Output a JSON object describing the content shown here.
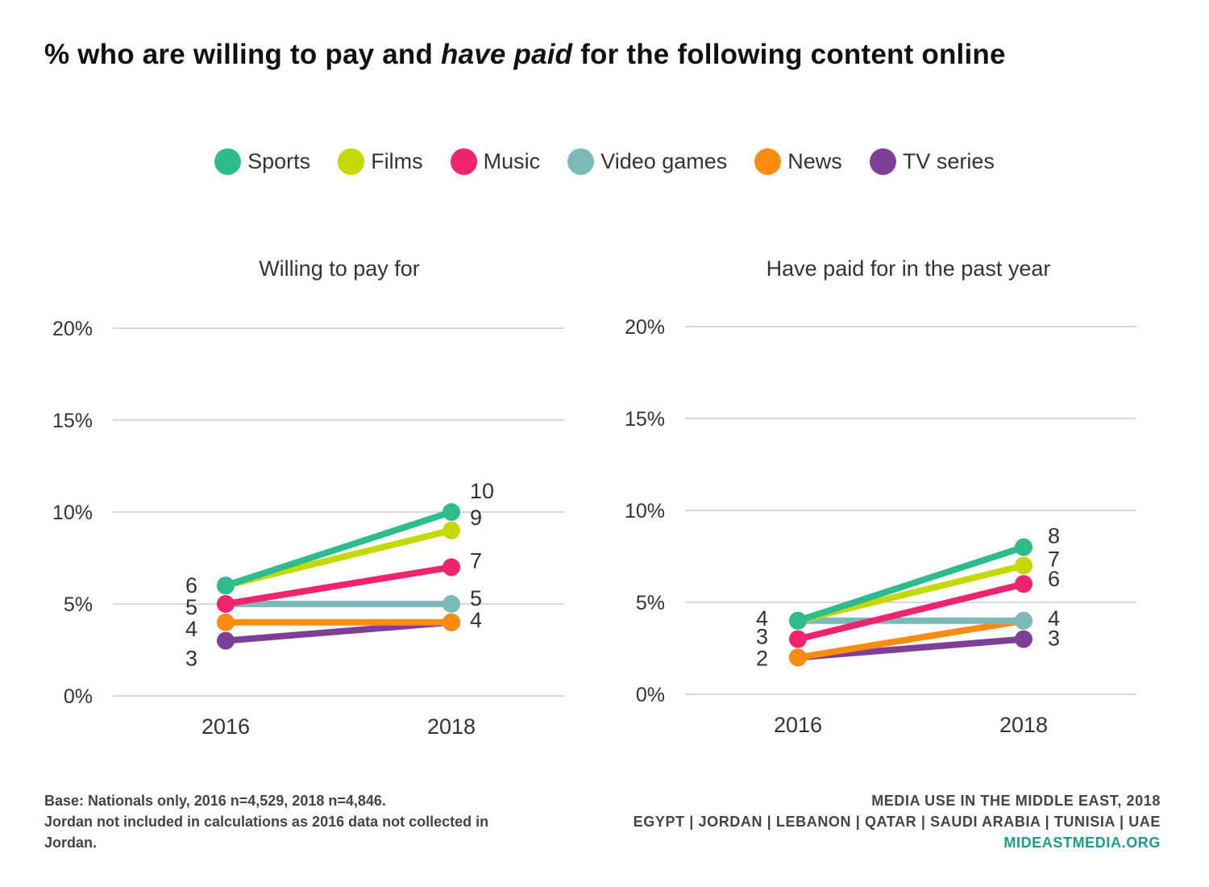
{
  "title": {
    "before": "% who are willing to pay and ",
    "emphasis": "have paid",
    "after": " for the following content online"
  },
  "legend": [
    {
      "label": "Sports",
      "color": "#2dbd8c"
    },
    {
      "label": "Films",
      "color": "#c5d800"
    },
    {
      "label": "Music",
      "color": "#f0246e"
    },
    {
      "label": "Video games",
      "color": "#7bbab8"
    },
    {
      "label": "News",
      "color": "#ff8c10"
    },
    {
      "label": "TV series",
      "color": "#7f3f98"
    }
  ],
  "chart_data": [
    {
      "type": "line",
      "title": "Willing to pay for",
      "x": [
        "2016",
        "2018"
      ],
      "ylim": [
        0,
        20
      ],
      "yticks": [
        "0%",
        "5%",
        "10%",
        "15%",
        "20%"
      ],
      "series": [
        {
          "name": "Sports",
          "values": [
            6,
            10
          ]
        },
        {
          "name": "Films",
          "values": [
            6,
            9
          ]
        },
        {
          "name": "Music",
          "values": [
            5,
            7
          ]
        },
        {
          "name": "Video games",
          "values": [
            5,
            5
          ]
        },
        {
          "name": "News",
          "values": [
            4,
            4
          ]
        },
        {
          "name": "TV series",
          "values": [
            3,
            4
          ]
        }
      ],
      "value_labels": {
        "left": [
          "6",
          "5",
          "4",
          "3"
        ],
        "right": [
          "10",
          "9",
          "7",
          "5",
          "4"
        ]
      }
    },
    {
      "type": "line",
      "title": "Have paid for in the past year",
      "x": [
        "2016",
        "2018"
      ],
      "ylim": [
        0,
        20
      ],
      "yticks": [
        "0%",
        "5%",
        "10%",
        "15%",
        "20%"
      ],
      "series": [
        {
          "name": "Sports",
          "values": [
            4,
            8
          ]
        },
        {
          "name": "Films",
          "values": [
            4,
            7
          ]
        },
        {
          "name": "Music",
          "values": [
            3,
            6
          ]
        },
        {
          "name": "Video games",
          "values": [
            4,
            4
          ]
        },
        {
          "name": "News",
          "values": [
            2,
            4
          ]
        },
        {
          "name": "TV series",
          "values": [
            2,
            3
          ]
        }
      ],
      "value_labels": {
        "left": [
          "4",
          "3",
          "2"
        ],
        "right": [
          "8",
          "7",
          "6",
          "4",
          "3"
        ]
      }
    }
  ],
  "footnote": "Base: Nationals only, 2016 n=4,529, 2018 n=4,846.\nJordan not included in calculations as 2016 data not collected in Jordan.",
  "credits": {
    "line1": "MEDIA USE IN THE MIDDLE EAST, 2018",
    "line2": "EGYPT | JORDAN | LEBANON | QATAR | SAUDI ARABIA | TUNISIA | UAE",
    "site": "MIDEASTMEDIA.ORG"
  }
}
